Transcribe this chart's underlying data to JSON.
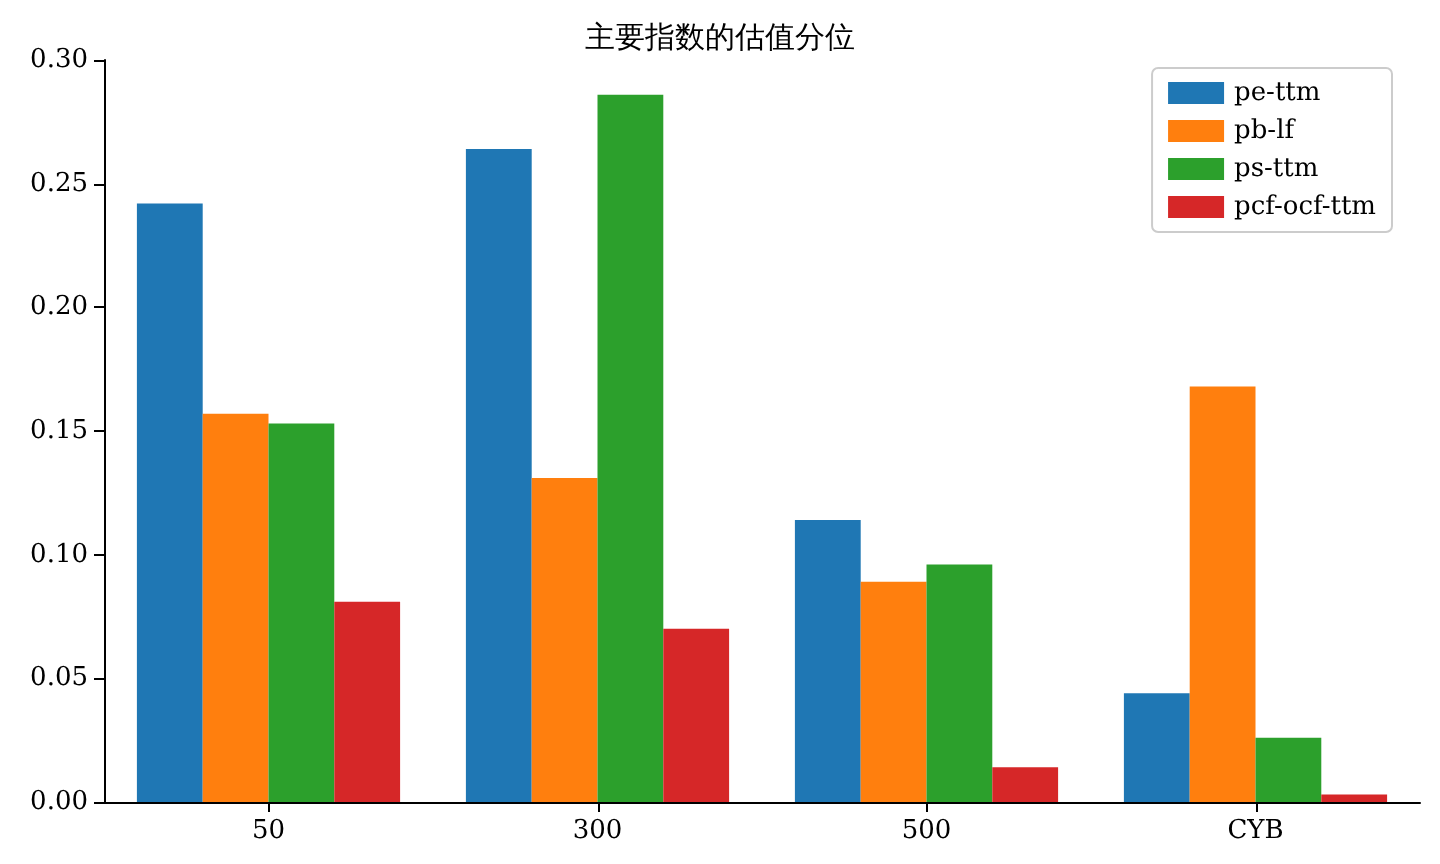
{
  "chart_data": {
    "type": "bar",
    "title": "主要指数的估值分位",
    "categories": [
      "50",
      "300",
      "500",
      "CYB"
    ],
    "series": [
      {
        "name": "pe-ttm",
        "color": "#1f77b4",
        "values": [
          0.242,
          0.264,
          0.114,
          0.044
        ]
      },
      {
        "name": "pb-lf",
        "color": "#ff7f0e",
        "values": [
          0.157,
          0.131,
          0.089,
          0.168
        ]
      },
      {
        "name": "ps-ttm",
        "color": "#2ca02c",
        "values": [
          0.153,
          0.286,
          0.096,
          0.026
        ]
      },
      {
        "name": "pcf-ocf-ttm",
        "color": "#d62728",
        "values": [
          0.081,
          0.07,
          0.014,
          0.003
        ]
      }
    ],
    "ylim": [
      0,
      0.3
    ],
    "yticks": [
      {
        "value": 0,
        "label": "0.00"
      },
      0.05,
      {
        "value": 0.1,
        "label": "0.10"
      },
      0.15,
      {
        "value": 0.2,
        "label": "0.20"
      },
      0.25,
      {
        "value": 0.3,
        "label": "0.30"
      }
    ],
    "grid": false,
    "legend": "top right"
  }
}
